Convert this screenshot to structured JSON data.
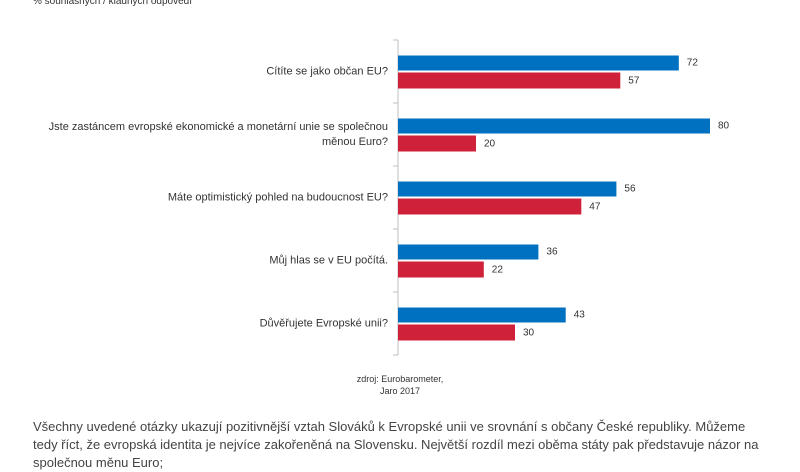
{
  "chart_data": {
    "type": "bar",
    "orientation": "horizontal",
    "subtitle": "% souhlasných / kladných odpovědí",
    "categories": [
      "Cítíte se jako občan EU?",
      "Jste zastáncem evropské ekonomické a monetární unie se společnou\nměnou Euro?",
      "Máte optimistický pohled na budoucnost EU?",
      "Můj hlas se v EU počítá.",
      "Důvěřujete Evropské unii?"
    ],
    "series": [
      {
        "color": "#0070c0",
        "values": [
          72,
          80,
          56,
          36,
          43
        ]
      },
      {
        "color": "#d0213a",
        "values": [
          57,
          20,
          47,
          22,
          30
        ]
      }
    ],
    "source": "zdroj: Eurobarometer,\nJaro 2017"
  },
  "paragraph": "Všechny uvedené otázky ukazují pozitivnější vztah Slováků k Evropské unii ve srovnání s občany České republiky. Můžeme tedy říct, že evropská identita je nejvíce zakořeněná na Slovensku. Největší rozdíl mezi oběma státy pak představuje názor na společnou měnu Euro;"
}
